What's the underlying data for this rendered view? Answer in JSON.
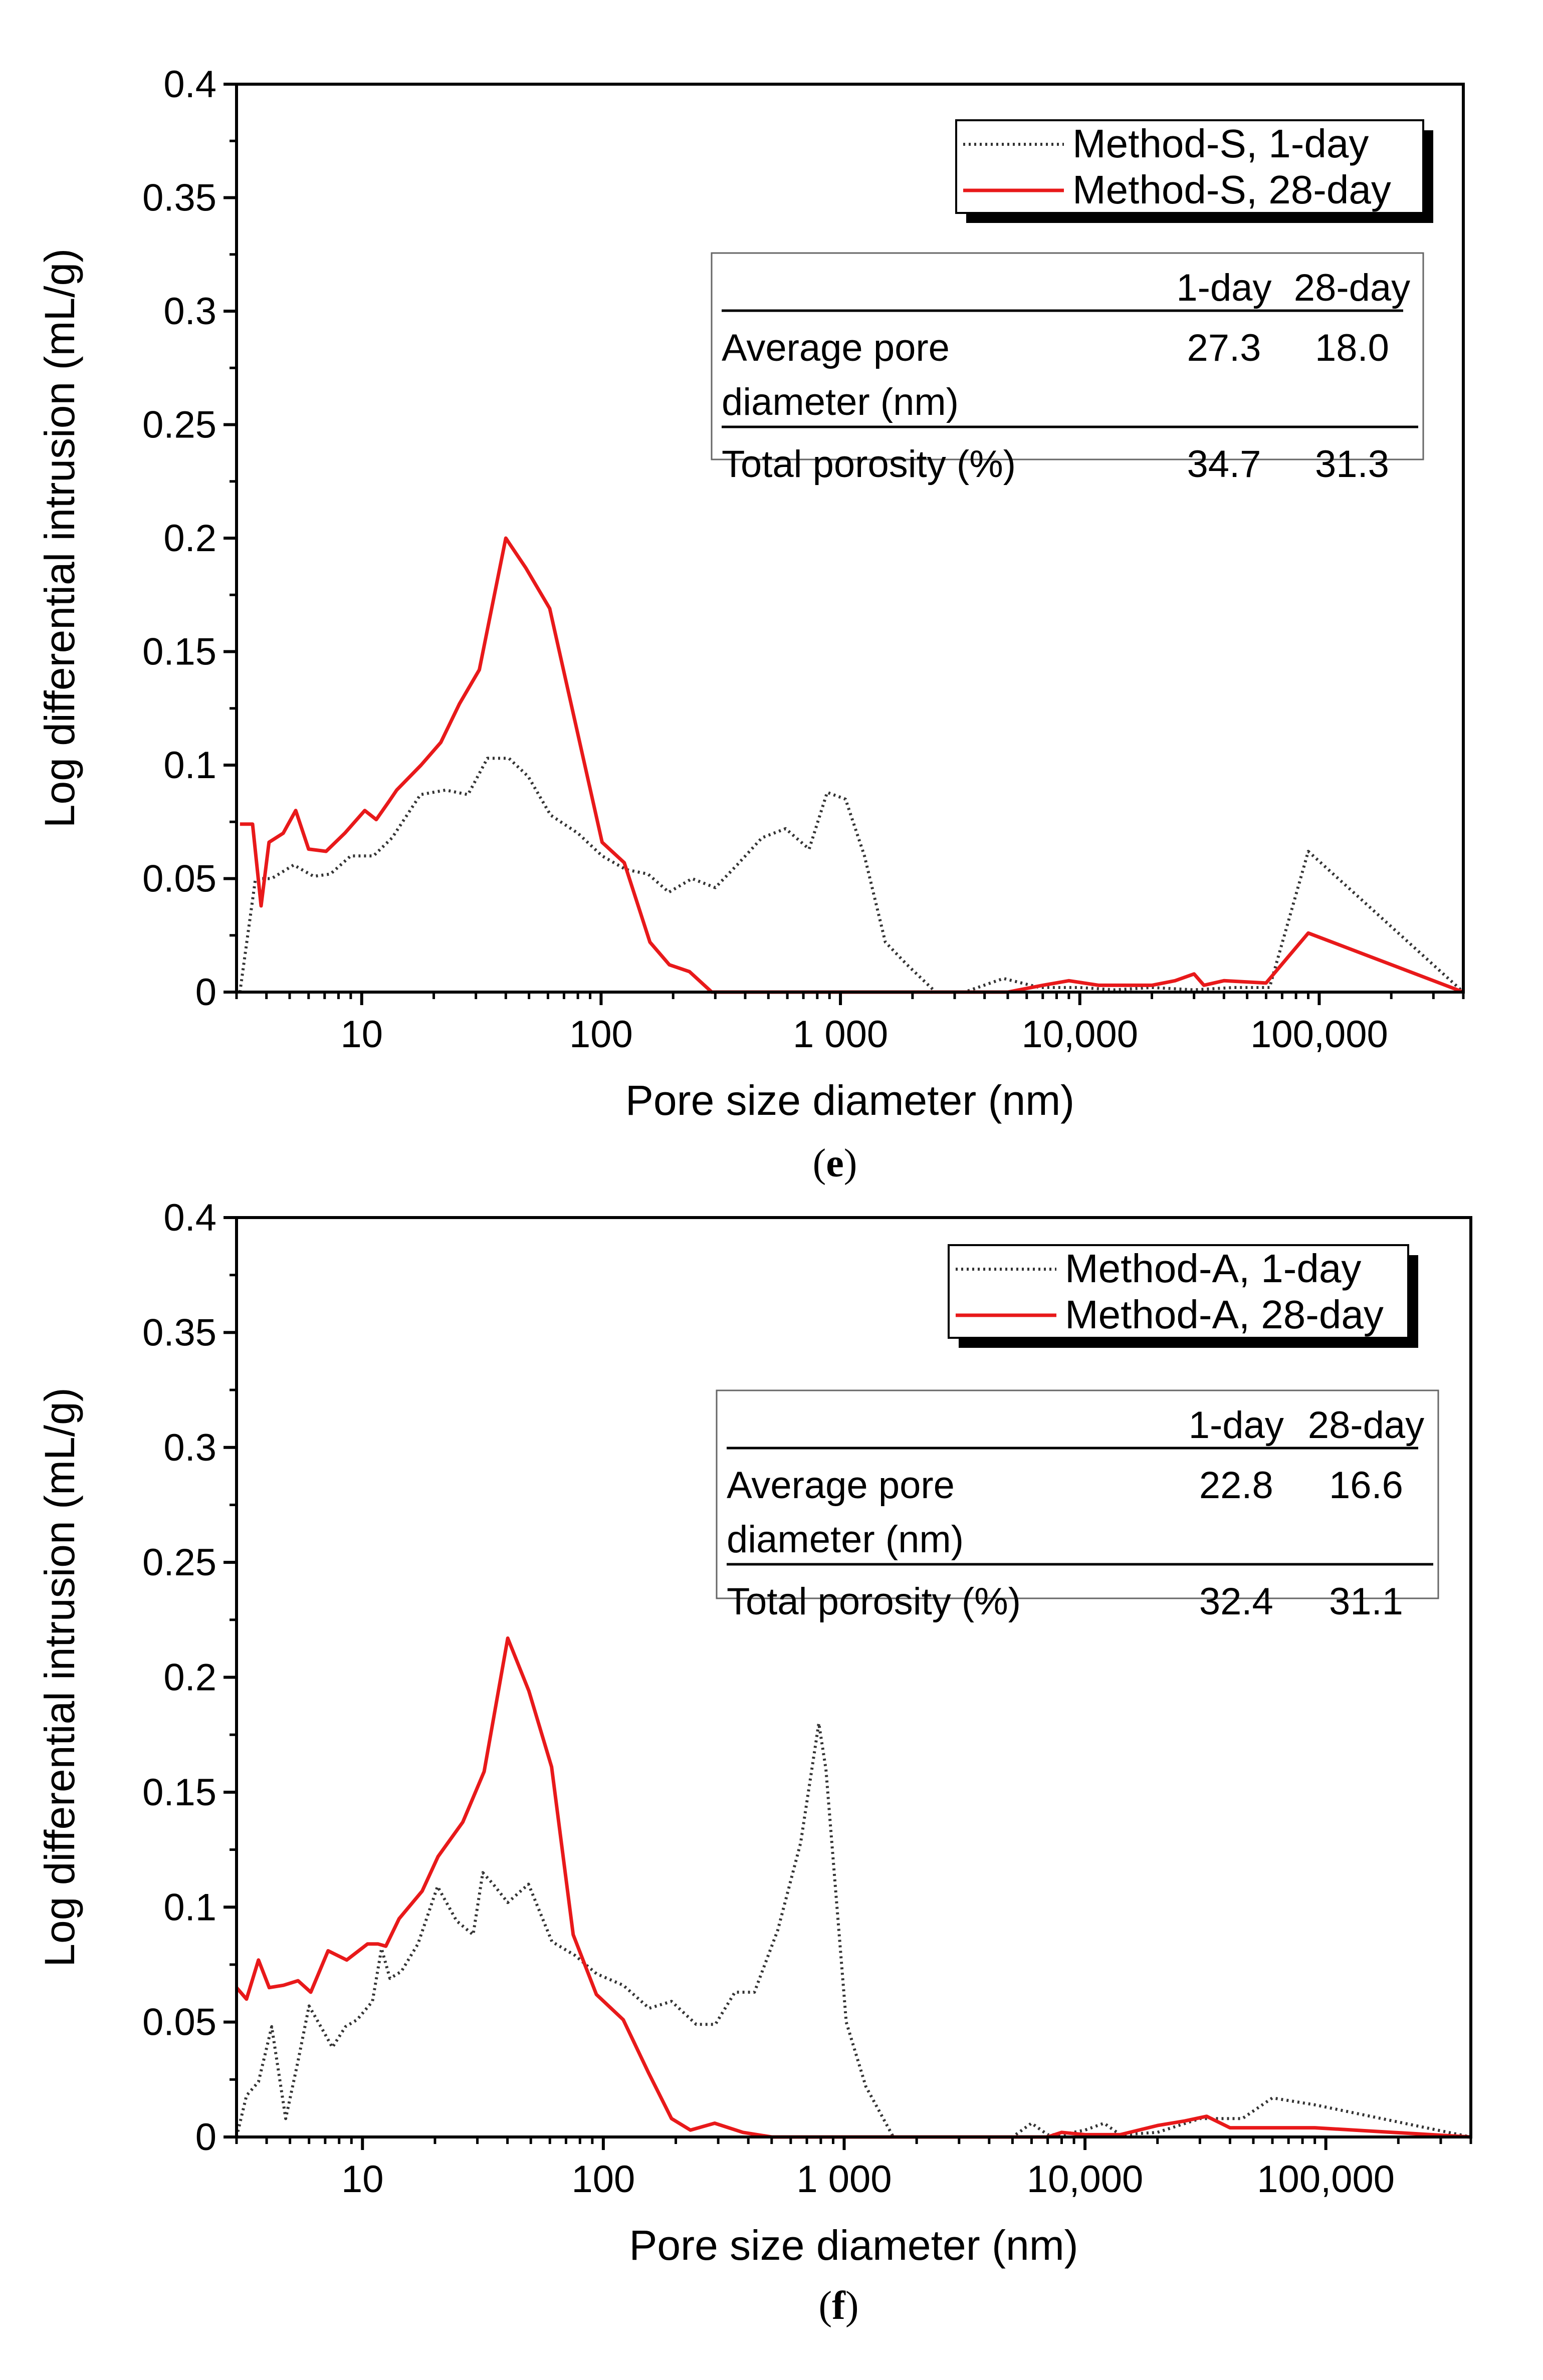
{
  "chart_data": [
    {
      "type": "line",
      "panel": "e",
      "xscale": "log",
      "xlim": [
        3,
        400000
      ],
      "ylim": [
        0,
        0.4
      ],
      "xlabel": "Pore size diameter (nm)",
      "ylabel": "Log differential intrusion (mL/g)",
      "xticks": [
        10,
        100,
        1000,
        10000,
        100000
      ],
      "xtick_labels": [
        "10",
        "100",
        "1 000",
        "10,000",
        "100,000"
      ],
      "yticks": [
        0,
        0.05,
        0.1,
        0.15,
        0.2,
        0.25,
        0.3,
        0.35,
        0.4
      ],
      "ytick_labels": [
        "0",
        "0.05",
        "0.1",
        "0.15",
        "0.2",
        "0.25",
        "0.3",
        "0.35",
        "0.4"
      ],
      "legend": {
        "position": "top-right",
        "entries": [
          "Method-S,   1-day",
          "Method-S, 28-day"
        ]
      },
      "caption": "e",
      "inset_table": {
        "headers": [
          "",
          "1-day",
          "28-day"
        ],
        "rows": [
          {
            "label1": "Average pore",
            "label2": "diameter (nm)",
            "v1": "27.3",
            "v2": "18.0"
          },
          {
            "label1": "Total porosity (%)",
            "label2": "",
            "v1": "34.7",
            "v2": "31.3"
          }
        ]
      },
      "series": [
        {
          "name": "Method-S, 1-day",
          "color": "#333333",
          "style": "dotted",
          "x": [
            3.1,
            3.6,
            4.2,
            5.2,
            6.3,
            7.4,
            9.0,
            11.2,
            13.4,
            17.6,
            22.4,
            27.8,
            33.5,
            41.2,
            49.6,
            61.5,
            80.0,
            101,
            127,
            157,
            192,
            240,
            300,
            370,
            470,
            590,
            740,
            880,
            1050,
            1260,
            1540,
            1900,
            2500,
            3300,
            4800,
            6800,
            10000,
            14000,
            20000,
            30000,
            44000,
            62000,
            90000,
            400000
          ],
          "y": [
            0.0,
            0.05,
            0.05,
            0.056,
            0.051,
            0.052,
            0.06,
            0.06,
            0.068,
            0.087,
            0.089,
            0.087,
            0.103,
            0.103,
            0.095,
            0.078,
            0.07,
            0.06,
            0.054,
            0.052,
            0.044,
            0.05,
            0.046,
            0.056,
            0.068,
            0.072,
            0.063,
            0.088,
            0.085,
            0.06,
            0.022,
            0.012,
            0.0,
            0.0,
            0.006,
            0.002,
            0.002,
            0.001,
            0.002,
            0.001,
            0.002,
            0.002,
            0.062,
            0.0
          ]
        },
        {
          "name": "Method-S, 28-day",
          "color": "#e8191a",
          "style": "solid",
          "x": [
            3.1,
            3.5,
            3.8,
            4.1,
            4.7,
            5.3,
            6.0,
            7.1,
            8.5,
            10.3,
            11.5,
            13.0,
            14.0,
            17.7,
            21.4,
            25.6,
            31.0,
            40.0,
            48.4,
            61.0,
            101,
            125,
            160,
            193,
            234,
            290,
            400,
            1000,
            5000,
            7000,
            9000,
            12000,
            20000,
            25000,
            30000,
            33000,
            40000,
            60000,
            90000,
            400000
          ],
          "y": [
            0.074,
            0.074,
            0.038,
            0.066,
            0.07,
            0.08,
            0.063,
            0.062,
            0.07,
            0.08,
            0.076,
            0.084,
            0.089,
            0.1,
            0.11,
            0.127,
            0.142,
            0.2,
            0.187,
            0.169,
            0.066,
            0.057,
            0.022,
            0.012,
            0.009,
            0.0,
            0.0,
            0.0,
            0.0,
            0.003,
            0.005,
            0.003,
            0.003,
            0.005,
            0.008,
            0.003,
            0.005,
            0.004,
            0.026,
            0.0
          ]
        }
      ]
    },
    {
      "type": "line",
      "panel": "f",
      "xscale": "log",
      "xlim": [
        3,
        400000
      ],
      "ylim": [
        0,
        0.4
      ],
      "xlabel": "Pore size diameter (nm)",
      "ylabel": "Log differential intrusion (mL/g)",
      "xticks": [
        10,
        100,
        1000,
        10000,
        100000
      ],
      "xtick_labels": [
        "10",
        "100",
        "1 000",
        "10,000",
        "100,000"
      ],
      "yticks": [
        0,
        0.05,
        0.1,
        0.15,
        0.2,
        0.25,
        0.3,
        0.35,
        0.4
      ],
      "ytick_labels": [
        "0",
        "0.05",
        "0.1",
        "0.15",
        "0.2",
        "0.25",
        "0.3",
        "0.35",
        "0.4"
      ],
      "legend": {
        "position": "top-right",
        "entries": [
          "Method-A,   1-day",
          "Method-A, 28-day"
        ]
      },
      "caption": "f",
      "inset_table": {
        "headers": [
          "",
          "1-day",
          "28-day"
        ],
        "rows": [
          {
            "label1": "Average pore",
            "label2": "diameter (nm)",
            "v1": "22.8",
            "v2": "16.6"
          },
          {
            "label1": "Total porosity (%)",
            "label2": "",
            "v1": "32.4",
            "v2": "31.1"
          }
        ]
      },
      "series": [
        {
          "name": "Method-A, 1-day",
          "color": "#333333",
          "style": "dotted",
          "x": [
            3.0,
            3.3,
            3.7,
            4.2,
            4.8,
            5.4,
            6.0,
            6.8,
            7.5,
            8.5,
            9.5,
            11.0,
            12.0,
            13.0,
            14.5,
            17.0,
            20.5,
            24.6,
            28.8,
            31.6,
            34.9,
            40.1,
            48.9,
            61.2,
            76.3,
            93.8,
            121,
            155,
            192,
            243,
            292,
            352,
            424,
            530,
            660,
            785,
            840,
            1020,
            1230,
            1600,
            2000,
            3000,
            5000,
            6000,
            7000,
            8000,
            10000,
            12000,
            14000,
            20000,
            30000,
            45000,
            60000,
            90000,
            400000
          ],
          "y": [
            0.0,
            0.018,
            0.024,
            0.048,
            0.008,
            0.033,
            0.057,
            0.047,
            0.039,
            0.048,
            0.051,
            0.059,
            0.082,
            0.069,
            0.072,
            0.084,
            0.109,
            0.094,
            0.088,
            0.115,
            0.11,
            0.102,
            0.11,
            0.085,
            0.079,
            0.071,
            0.066,
            0.056,
            0.059,
            0.049,
            0.049,
            0.063,
            0.063,
            0.09,
            0.128,
            0.18,
            0.16,
            0.05,
            0.022,
            0.0,
            0.0,
            0.0,
            0.0,
            0.006,
            0.001,
            0.001,
            0.003,
            0.006,
            0.001,
            0.002,
            0.008,
            0.008,
            0.017,
            0.014,
            0.0
          ]
        },
        {
          "name": "Method-A, 28-day",
          "color": "#e8191a",
          "style": "solid",
          "x": [
            3.0,
            3.3,
            3.7,
            4.1,
            4.7,
            5.4,
            6.1,
            7.2,
            8.6,
            10.5,
            11.6,
            12.5,
            14.2,
            17.7,
            20.6,
            26.1,
            32.0,
            40.1,
            49.1,
            61.0,
            75.0,
            93.6,
            121,
            154,
            192,
            230,
            290,
            380,
            500,
            1000,
            5000,
            7000,
            8000,
            10000,
            14000,
            20000,
            26000,
            32000,
            40000,
            50000,
            90000,
            400000
          ],
          "y": [
            0.065,
            0.06,
            0.077,
            0.065,
            0.066,
            0.068,
            0.063,
            0.081,
            0.077,
            0.084,
            0.084,
            0.083,
            0.095,
            0.107,
            0.122,
            0.137,
            0.159,
            0.217,
            0.194,
            0.161,
            0.088,
            0.062,
            0.051,
            0.028,
            0.008,
            0.003,
            0.006,
            0.002,
            0.0,
            0.0,
            0.0,
            0.0,
            0.002,
            0.001,
            0.001,
            0.005,
            0.007,
            0.009,
            0.004,
            0.004,
            0.004,
            0.0
          ]
        }
      ]
    }
  ]
}
